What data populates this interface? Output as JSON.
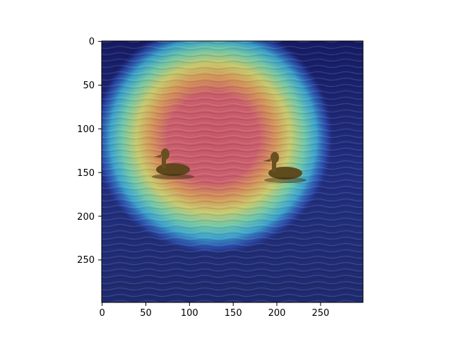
{
  "image": {
    "description_kind": "heatmap overlay on photograph",
    "x_ticks": [
      "0",
      "50",
      "100",
      "150",
      "200",
      "250"
    ],
    "y_ticks": [
      "0",
      "50",
      "100",
      "150",
      "200",
      "250"
    ],
    "x_range": [
      0,
      299
    ],
    "y_range": [
      0,
      299
    ],
    "colors": {
      "water_dark": "#151a5a",
      "water_mid": "#2b3e96",
      "heat_red": "#d65a5a",
      "heat_yellow": "#e8e070",
      "heat_cyan": "#5fe0d0",
      "heat_blue": "#3a6ee0",
      "duck": "#6a5020"
    }
  }
}
